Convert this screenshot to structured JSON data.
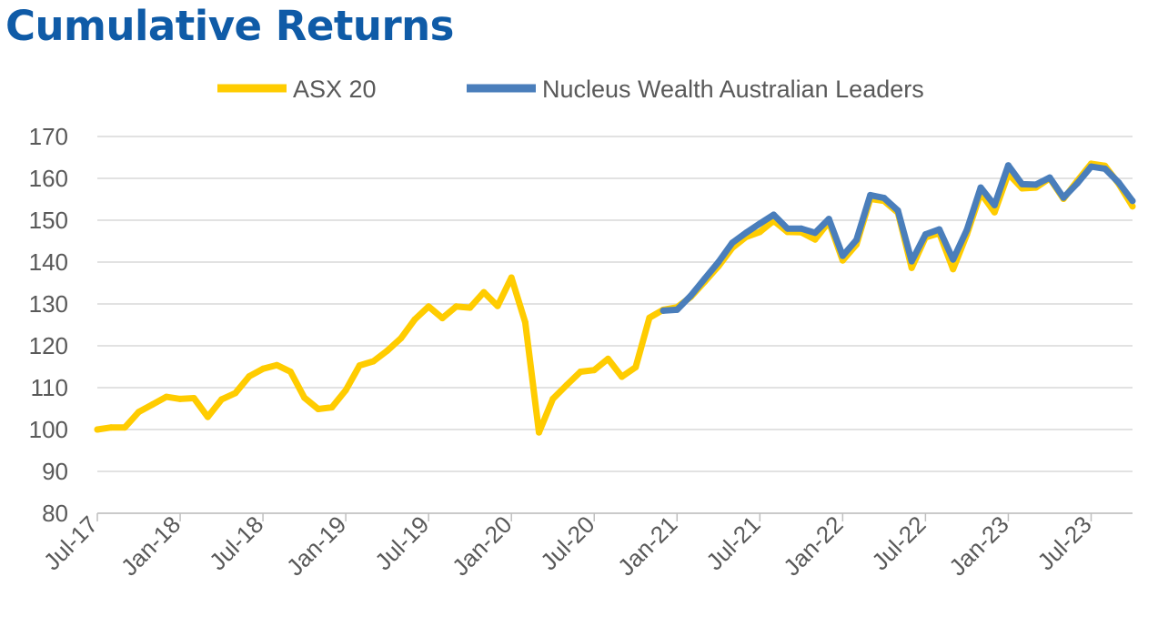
{
  "chart_data": {
    "type": "line",
    "title": "Cumulative Returns",
    "xlabel": "",
    "ylabel": "",
    "ylim": [
      80,
      170
    ],
    "yticks": [
      80,
      90,
      100,
      110,
      120,
      130,
      140,
      150,
      160,
      170
    ],
    "xtick_labels": [
      "Jul-17",
      "Jan-18",
      "Jul-18",
      "Jan-19",
      "Jul-19",
      "Jan-20",
      "Jul-20",
      "Jan-21",
      "Jul-21",
      "Jan-22",
      "Jul-22",
      "Jan-23",
      "Jul-23"
    ],
    "x_start": "Jul-17",
    "x_end": "Oct-23",
    "grid": "horizontal",
    "legend_position": "top",
    "series": [
      {
        "name": "ASX 20",
        "color": "#ffcc00",
        "x": [
          "Jul-17",
          "Aug-17",
          "Sep-17",
          "Oct-17",
          "Nov-17",
          "Dec-17",
          "Jan-18",
          "Feb-18",
          "Mar-18",
          "Apr-18",
          "May-18",
          "Jun-18",
          "Jul-18",
          "Aug-18",
          "Sep-18",
          "Oct-18",
          "Nov-18",
          "Dec-18",
          "Jan-19",
          "Feb-19",
          "Mar-19",
          "Apr-19",
          "May-19",
          "Jun-19",
          "Jul-19",
          "Aug-19",
          "Sep-19",
          "Oct-19",
          "Nov-19",
          "Dec-19",
          "Jan-20",
          "Feb-20",
          "Mar-20",
          "Apr-20",
          "May-20",
          "Jun-20",
          "Jul-20",
          "Aug-20",
          "Sep-20",
          "Oct-20",
          "Nov-20",
          "Dec-20",
          "Jan-21",
          "Feb-21",
          "Mar-21",
          "Apr-21",
          "May-21",
          "Jun-21",
          "Jul-21",
          "Aug-21",
          "Sep-21",
          "Oct-21",
          "Nov-21",
          "Dec-21",
          "Jan-22",
          "Feb-22",
          "Mar-22",
          "Apr-22",
          "May-22",
          "Jun-22",
          "Jul-22",
          "Aug-22",
          "Sep-22",
          "Oct-22",
          "Nov-22",
          "Dec-22",
          "Jan-23",
          "Feb-23",
          "Mar-23",
          "Apr-23",
          "May-23",
          "Jun-23",
          "Jul-23",
          "Aug-23",
          "Sep-23",
          "Oct-23"
        ],
        "values": [
          100.0,
          100.5,
          100.5,
          104.2,
          106.0,
          107.8,
          107.3,
          107.5,
          103.0,
          107.2,
          108.7,
          112.7,
          114.5,
          115.4,
          113.8,
          107.6,
          104.9,
          105.3,
          109.4,
          115.3,
          116.3,
          118.8,
          121.8,
          126.3,
          129.4,
          126.6,
          129.4,
          129.1,
          132.8,
          129.5,
          136.3,
          125.6,
          99.3,
          107.3,
          110.6,
          113.8,
          114.2,
          116.9,
          112.6,
          114.9,
          126.7,
          128.6,
          129.2,
          131.7,
          135.3,
          139.0,
          143.4,
          146.0,
          147.2,
          149.9,
          147.2,
          147.1,
          145.4,
          149.6,
          140.4,
          144.2,
          155.1,
          154.6,
          151.8,
          138.6,
          145.9,
          146.9,
          138.3,
          146.6,
          156.5,
          151.9,
          161.1,
          157.6,
          157.8,
          160.0,
          155.1,
          159.4,
          163.5,
          163.0,
          158.7,
          153.3
        ]
      },
      {
        "name": "Nucleus Wealth Australian Leaders",
        "color": "#4a7ebb",
        "x": [
          "Dec-20",
          "Jan-21",
          "Feb-21",
          "Mar-21",
          "Apr-21",
          "May-21",
          "Jun-21",
          "Jul-21",
          "Aug-21",
          "Sep-21",
          "Oct-21",
          "Nov-21",
          "Dec-21",
          "Jan-22",
          "Feb-22",
          "Mar-22",
          "Apr-22",
          "May-22",
          "Jun-22",
          "Jul-22",
          "Aug-22",
          "Sep-22",
          "Oct-22",
          "Nov-22",
          "Dec-22",
          "Jan-23",
          "Feb-23",
          "Mar-23",
          "Apr-23",
          "May-23",
          "Jun-23",
          "Jul-23",
          "Aug-23",
          "Sep-23",
          "Oct-23"
        ],
        "values": [
          128.4,
          128.6,
          132.0,
          136.0,
          140.0,
          144.6,
          147.0,
          149.2,
          151.3,
          148.0,
          148.0,
          147.0,
          150.3,
          141.5,
          145.3,
          156.0,
          155.3,
          152.3,
          140.2,
          146.6,
          147.8,
          140.6,
          147.7,
          157.8,
          153.6,
          163.1,
          158.6,
          158.5,
          160.2,
          155.4,
          158.8,
          162.8,
          162.3,
          159.0,
          154.6
        ]
      }
    ]
  }
}
